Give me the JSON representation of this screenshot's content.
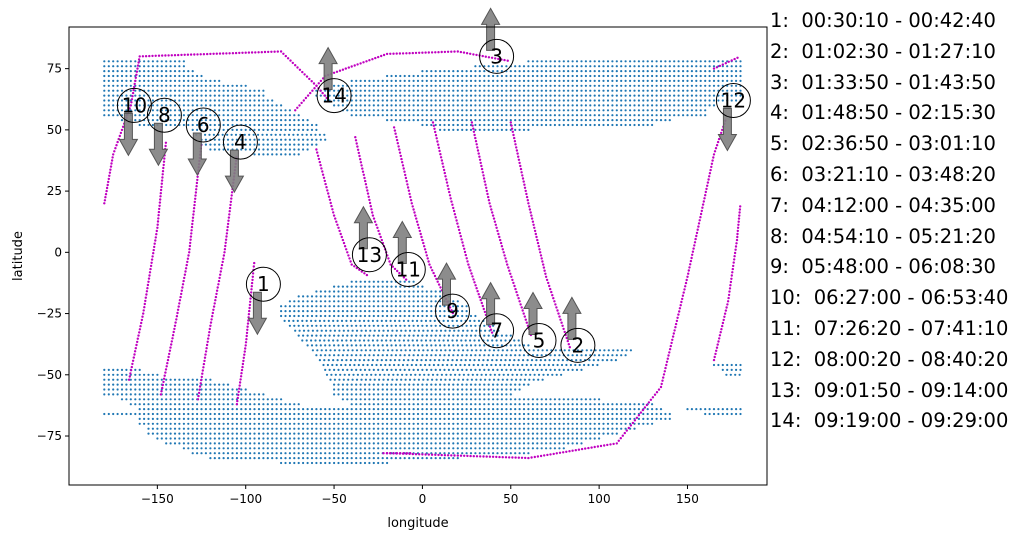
{
  "chart_data": {
    "type": "scatter",
    "xlabel": "longitude",
    "ylabel": "latitude",
    "xlim": [
      -200,
      195
    ],
    "ylim": [
      -95,
      92
    ],
    "xticks": [
      -150,
      -100,
      -50,
      0,
      50,
      100,
      150
    ],
    "yticks": [
      -75,
      -50,
      -25,
      0,
      25,
      50,
      75
    ],
    "grid": false,
    "legend_position": "right",
    "colors": {
      "ground": "#1f77b4",
      "track": "#c000c0",
      "arrow": "#808080"
    },
    "ground_points": {
      "north": [
        {
          "lat": 78,
          "lon0": -180,
          "lon1": -135
        },
        {
          "lat": 76,
          "lon0": -180,
          "lon1": -135
        },
        {
          "lat": 74,
          "lon0": -180,
          "lon1": -130
        },
        {
          "lat": 72,
          "lon0": -180,
          "lon1": -125
        },
        {
          "lat": 70,
          "lon0": -180,
          "lon1": -115
        },
        {
          "lat": 68,
          "lon0": -180,
          "lon1": -100
        },
        {
          "lat": 66,
          "lon0": -180,
          "lon1": -90
        },
        {
          "lat": 64,
          "lon0": -180,
          "lon1": -90
        },
        {
          "lat": 62,
          "lon0": -180,
          "lon1": -85
        },
        {
          "lat": 60,
          "lon0": -180,
          "lon1": -80
        },
        {
          "lat": 58,
          "lon0": -180,
          "lon1": -75
        },
        {
          "lat": 56,
          "lon0": -180,
          "lon1": -70
        },
        {
          "lat": 54,
          "lon0": -170,
          "lon1": -65
        },
        {
          "lat": 52,
          "lon0": -160,
          "lon1": -60
        },
        {
          "lat": 50,
          "lon0": -130,
          "lon1": -58
        },
        {
          "lat": 48,
          "lon0": -128,
          "lon1": -55
        },
        {
          "lat": 46,
          "lon0": -125,
          "lon1": -55
        },
        {
          "lat": 44,
          "lon0": -125,
          "lon1": -60
        },
        {
          "lat": 42,
          "lon0": -120,
          "lon1": -65
        },
        {
          "lat": 40,
          "lon0": -95,
          "lon1": -70
        },
        {
          "lat": 66,
          "lon0": -60,
          "lon1": 180
        },
        {
          "lat": 64,
          "lon0": -60,
          "lon1": 180
        },
        {
          "lat": 62,
          "lon0": -55,
          "lon1": 180
        },
        {
          "lat": 60,
          "lon0": -50,
          "lon1": 165
        },
        {
          "lat": 58,
          "lon0": -45,
          "lon1": 160
        },
        {
          "lat": 56,
          "lon0": -40,
          "lon1": 160
        },
        {
          "lat": 54,
          "lon0": -20,
          "lon1": 140
        },
        {
          "lat": 52,
          "lon0": 0,
          "lon1": 130
        },
        {
          "lat": 50,
          "lon0": 10,
          "lon1": 60
        },
        {
          "lat": 68,
          "lon0": -50,
          "lon1": 180
        },
        {
          "lat": 70,
          "lon0": -40,
          "lon1": 180
        },
        {
          "lat": 72,
          "lon0": -20,
          "lon1": 180
        },
        {
          "lat": 74,
          "lon0": 0,
          "lon1": 180
        },
        {
          "lat": 76,
          "lon0": 30,
          "lon1": 180
        },
        {
          "lat": 78,
          "lon0": 60,
          "lon1": 180
        }
      ],
      "south": [
        {
          "lat": -12,
          "lon0": -40,
          "lon1": -5
        },
        {
          "lat": -14,
          "lon0": -50,
          "lon1": 0
        },
        {
          "lat": -16,
          "lon0": -60,
          "lon1": 10
        },
        {
          "lat": -18,
          "lon0": -70,
          "lon1": 15
        },
        {
          "lat": -20,
          "lon0": -75,
          "lon1": 20
        },
        {
          "lat": -22,
          "lon0": -80,
          "lon1": 25
        },
        {
          "lat": -24,
          "lon0": -80,
          "lon1": 25
        },
        {
          "lat": -26,
          "lon0": -80,
          "lon1": 30
        },
        {
          "lat": -28,
          "lon0": -78,
          "lon1": 35
        },
        {
          "lat": -30,
          "lon0": -75,
          "lon1": 40
        },
        {
          "lat": -32,
          "lon0": -72,
          "lon1": 45
        },
        {
          "lat": -34,
          "lon0": -70,
          "lon1": 50
        },
        {
          "lat": -36,
          "lon0": -68,
          "lon1": 55
        },
        {
          "lat": -38,
          "lon0": -65,
          "lon1": 60
        },
        {
          "lat": -40,
          "lon0": -62,
          "lon1": 120
        },
        {
          "lat": -42,
          "lon0": -60,
          "lon1": 115
        },
        {
          "lat": -44,
          "lon0": -58,
          "lon1": 110
        },
        {
          "lat": -46,
          "lon0": -56,
          "lon1": 100
        },
        {
          "lat": -48,
          "lon0": -180,
          "lon1": -160
        },
        {
          "lat": -50,
          "lon0": -180,
          "lon1": -150
        },
        {
          "lat": -48,
          "lon0": -55,
          "lon1": 90
        },
        {
          "lat": -50,
          "lon0": -54,
          "lon1": 80
        },
        {
          "lat": -52,
          "lon0": -180,
          "lon1": -120
        },
        {
          "lat": -52,
          "lon0": -52,
          "lon1": 70
        },
        {
          "lat": -54,
          "lon0": -180,
          "lon1": -110
        },
        {
          "lat": -54,
          "lon0": -50,
          "lon1": 60
        },
        {
          "lat": -56,
          "lon0": -180,
          "lon1": -100
        },
        {
          "lat": -56,
          "lon0": -50,
          "lon1": 55
        },
        {
          "lat": -58,
          "lon0": -180,
          "lon1": -90
        },
        {
          "lat": -58,
          "lon0": -50,
          "lon1": 50
        },
        {
          "lat": -60,
          "lon0": -170,
          "lon1": -80
        },
        {
          "lat": -60,
          "lon0": -45,
          "lon1": 100
        },
        {
          "lat": -62,
          "lon0": -165,
          "lon1": -70
        },
        {
          "lat": -62,
          "lon0": -40,
          "lon1": 130
        },
        {
          "lat": -64,
          "lon0": -160,
          "lon1": 135
        },
        {
          "lat": -66,
          "lon0": -180,
          "lon1": 140
        },
        {
          "lat": -68,
          "lon0": -160,
          "lon1": 140
        },
        {
          "lat": -70,
          "lon0": -160,
          "lon1": 130
        },
        {
          "lat": -72,
          "lon0": -155,
          "lon1": 120
        },
        {
          "lat": -74,
          "lon0": -155,
          "lon1": 110
        },
        {
          "lat": -76,
          "lon0": -150,
          "lon1": 100
        },
        {
          "lat": -78,
          "lon0": -145,
          "lon1": 90
        },
        {
          "lat": -80,
          "lon0": -135,
          "lon1": 80
        },
        {
          "lat": -82,
          "lon0": -130,
          "lon1": 60
        },
        {
          "lat": -84,
          "lon0": -120,
          "lon1": 20
        },
        {
          "lat": -86,
          "lon0": -80,
          "lon1": -20
        },
        {
          "lat": -64,
          "lon0": 150,
          "lon1": 180
        },
        {
          "lat": -66,
          "lon0": 160,
          "lon1": 180
        },
        {
          "lat": -46,
          "lon0": 165,
          "lon1": 180
        },
        {
          "lat": -48,
          "lon0": 170,
          "lon1": 180
        },
        {
          "lat": -50,
          "lon0": 172,
          "lon1": 180
        }
      ]
    },
    "tracks": [
      {
        "id": 1,
        "points": [
          [
            -105,
            -62
          ],
          [
            -100,
            -38
          ],
          [
            -96,
            -10
          ],
          [
            -95,
            -3
          ]
        ]
      },
      {
        "id": 2,
        "points": [
          [
            50,
            53
          ],
          [
            60,
            20
          ],
          [
            70,
            -10
          ],
          [
            84,
            -40
          ]
        ]
      },
      {
        "id": 3,
        "points": [
          [
            -72,
            58
          ],
          [
            -55,
            72
          ],
          [
            -20,
            81
          ],
          [
            20,
            82
          ],
          [
            50,
            78
          ]
        ]
      },
      {
        "id": 4,
        "points": [
          [
            -127,
            -60
          ],
          [
            -120,
            -30
          ],
          [
            -112,
            0
          ],
          [
            -105,
            40
          ]
        ]
      },
      {
        "id": 5,
        "points": [
          [
            28,
            53
          ],
          [
            38,
            20
          ],
          [
            48,
            -5
          ],
          [
            62,
            -35
          ]
        ]
      },
      {
        "id": 6,
        "points": [
          [
            -148,
            -58
          ],
          [
            -140,
            -30
          ],
          [
            -132,
            0
          ],
          [
            -125,
            45
          ]
        ]
      },
      {
        "id": 7,
        "points": [
          [
            6,
            53
          ],
          [
            16,
            22
          ],
          [
            26,
            -5
          ],
          [
            40,
            -34
          ]
        ]
      },
      {
        "id": 8,
        "points": [
          [
            -166,
            -52
          ],
          [
            -158,
            -25
          ],
          [
            -150,
            10
          ],
          [
            -145,
            46
          ]
        ]
      },
      {
        "id": 9,
        "points": [
          [
            -16,
            51
          ],
          [
            -6,
            20
          ],
          [
            4,
            -5
          ],
          [
            18,
            -26
          ]
        ]
      },
      {
        "id": 10,
        "points": [
          [
            -180,
            20
          ],
          [
            -175,
            40
          ],
          [
            -165,
            60
          ],
          [
            -160,
            80
          ],
          [
            -80,
            82
          ],
          [
            -60,
            68
          ],
          [
            -53,
            62
          ]
        ]
      },
      {
        "id": 11,
        "points": [
          [
            -38,
            47
          ],
          [
            -28,
            15
          ],
          [
            -18,
            -5
          ],
          [
            -8,
            -12
          ]
        ]
      },
      {
        "id": 12,
        "points": [
          [
            -20,
            -82
          ],
          [
            60,
            -84
          ],
          [
            110,
            -78
          ],
          [
            135,
            -55
          ],
          [
            150,
            -10
          ],
          [
            165,
            40
          ],
          [
            172,
            55
          ]
        ]
      },
      {
        "id": 13,
        "points": [
          [
            -60,
            42
          ],
          [
            -50,
            15
          ],
          [
            -40,
            -5
          ],
          [
            -30,
            -10
          ]
        ]
      },
      {
        "id": 14,
        "points": [
          [
            -22,
            -82
          ],
          [
            -5,
            -82
          ]
        ]
      },
      {
        "id": 15,
        "points": [
          [
            165,
            -44
          ],
          [
            173,
            -20
          ],
          [
            178,
            5
          ],
          [
            180,
            20
          ]
        ]
      },
      {
        "id": 16,
        "points": [
          [
            165,
            75
          ],
          [
            180,
            80
          ]
        ]
      }
    ],
    "markers": [
      {
        "label": "1",
        "lon": -90,
        "lat": -13,
        "dir": "down"
      },
      {
        "label": "2",
        "lon": 88,
        "lat": -38,
        "dir": "up"
      },
      {
        "label": "3",
        "lon": 42,
        "lat": 80,
        "dir": "up"
      },
      {
        "label": "4",
        "lon": -103,
        "lat": 45,
        "dir": "down"
      },
      {
        "label": "5",
        "lon": 66,
        "lat": -36,
        "dir": "up"
      },
      {
        "label": "6",
        "lon": -124,
        "lat": 52,
        "dir": "down"
      },
      {
        "label": "7",
        "lon": 42,
        "lat": -32,
        "dir": "up"
      },
      {
        "label": "8",
        "lon": -146,
        "lat": 56,
        "dir": "down"
      },
      {
        "label": "9",
        "lon": 17,
        "lat": -24,
        "dir": "up"
      },
      {
        "label": "10",
        "lon": -163,
        "lat": 60,
        "dir": "down"
      },
      {
        "label": "11",
        "lon": -8,
        "lat": -7,
        "dir": "up"
      },
      {
        "label": "12",
        "lon": 176,
        "lat": 62,
        "dir": "down"
      },
      {
        "label": "13",
        "lon": -30,
        "lat": -1,
        "dir": "up"
      },
      {
        "label": "14",
        "lon": -50,
        "lat": 64,
        "dir": "up"
      }
    ],
    "legend": [
      "1:  00:30:10 - 00:42:40",
      "2:  01:02:30 - 01:27:10",
      "3:  01:33:50 - 01:43:50",
      "4:  01:48:50 - 02:15:30",
      "5:  02:36:50 - 03:01:10",
      "6:  03:21:10 - 03:48:20",
      "7:  04:12:00 - 04:35:00",
      "8:  04:54:10 - 05:21:20",
      "9:  05:48:00 - 06:08:30",
      "10:  06:27:00 - 06:53:40",
      "11:  07:26:20 - 07:41:10",
      "12:  08:00:20 - 08:40:20",
      "13:  09:01:50 - 09:14:00",
      "14:  09:19:00 - 09:29:00"
    ]
  }
}
